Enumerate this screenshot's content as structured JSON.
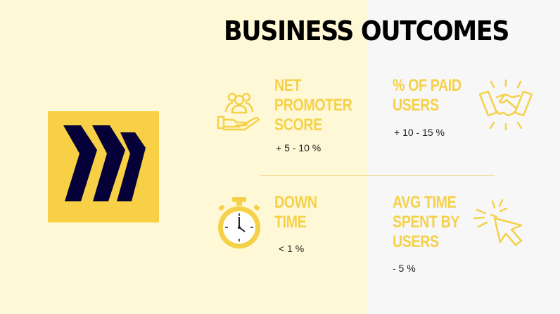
{
  "slide": {
    "title": "BUSINESS OUTCOMES",
    "colors": {
      "accent": "#f5d14a",
      "logo_bg": "#f8d045",
      "logo_mark": "#050038",
      "left_bg": "#fff8d6",
      "right_bg": "#f7f7f7"
    },
    "logo": {
      "icon": "miro-logo-icon"
    },
    "metrics": [
      {
        "label_lines": [
          "NET",
          "PROMOTER",
          "SCORE"
        ],
        "value": "+ 5 - 10 %",
        "icon": "customer-hand-icon"
      },
      {
        "label_lines": [
          "% OF PAID",
          " USERS"
        ],
        "value": "+ 10 - 15 %",
        "icon": "handshake-icon"
      },
      {
        "label_lines": [
          "DOWN",
          "TIME"
        ],
        "value": "< 1 %",
        "icon": "stopwatch-icon"
      },
      {
        "label_lines": [
          "AVG TIME",
          "SPENT BY",
          "USERS"
        ],
        "value": "- 5 %",
        "icon": "cursor-click-icon"
      }
    ]
  }
}
